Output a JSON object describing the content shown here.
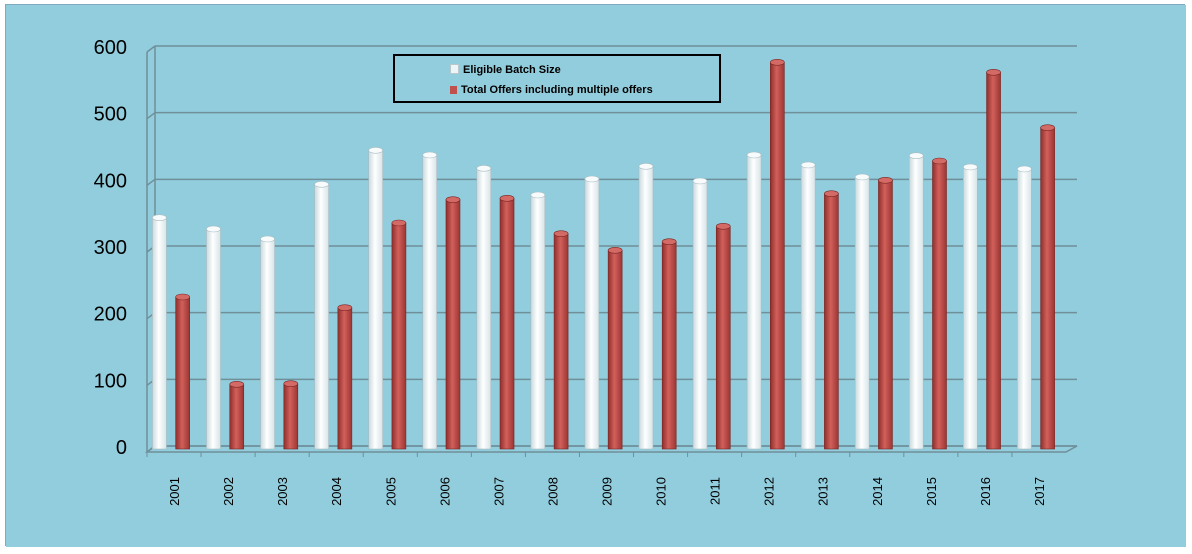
{
  "chart_data": {
    "type": "bar",
    "title": "",
    "xlabel": "",
    "ylabel": "",
    "ylim": [
      0,
      600
    ],
    "yticks": [
      0,
      100,
      200,
      300,
      400,
      500,
      600
    ],
    "grid": true,
    "legend_position": "top-center",
    "categories": [
      "2001",
      "2002",
      "2003",
      "2004",
      "2005",
      "2006",
      "2007",
      "2008",
      "2009",
      "2010",
      "2011",
      "2012",
      "2013",
      "2014",
      "2015",
      "2016",
      "2017"
    ],
    "series": [
      {
        "name": "Eligible Batch Size",
        "color": "#eef5f7",
        "values": [
          347,
          330,
          315,
          397,
          448,
          441,
          421,
          381,
          405,
          424,
          402,
          441,
          426,
          408,
          440,
          423,
          420
        ]
      },
      {
        "name": "Total Offers including multiple offers",
        "color": "#c0504d",
        "values": [
          228,
          97,
          98,
          212,
          339,
          374,
          376,
          323,
          298,
          311,
          334,
          580,
          383,
          403,
          432,
          565,
          482
        ]
      }
    ]
  },
  "colors": {
    "background": "#92cddd",
    "gridline": "#6f8f99",
    "series1": "#eef5f7",
    "series2": "#c0504d"
  }
}
